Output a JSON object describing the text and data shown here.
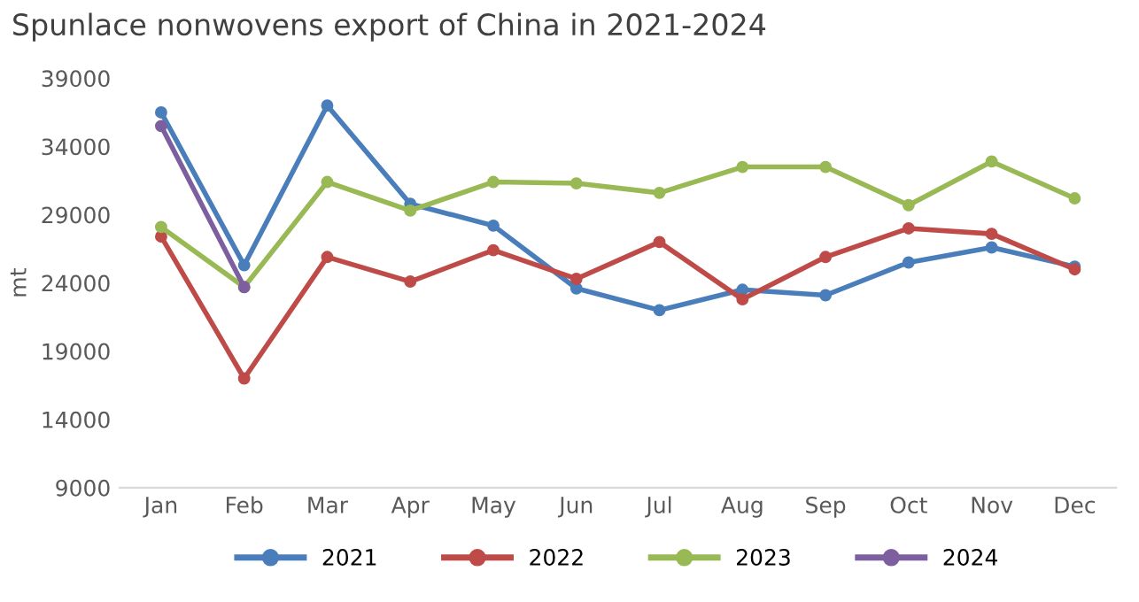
{
  "chart_data": {
    "type": "line",
    "title": "Spunlace nonwovens export of China in 2021-2024",
    "ylabel": "mt",
    "categories": [
      "Jan",
      "Feb",
      "Mar",
      "Apr",
      "May",
      "Jun",
      "Jul",
      "Aug",
      "Sep",
      "Oct",
      "Nov",
      "Dec"
    ],
    "ylim": [
      9000,
      39000
    ],
    "yticks": [
      9000,
      14000,
      19000,
      24000,
      29000,
      34000,
      39000
    ],
    "grid": false,
    "legend": "bottom",
    "marker": "circle",
    "line_style": "solid",
    "series": [
      {
        "name": "2021",
        "color": "#4a7ebb",
        "values": [
          36500,
          25300,
          37000,
          29800,
          28200,
          23600,
          22000,
          23500,
          23100,
          25500,
          26600,
          25200
        ]
      },
      {
        "name": "2022",
        "color": "#be4b48",
        "values": [
          27400,
          17000,
          25900,
          24100,
          26400,
          24300,
          27000,
          22800,
          25900,
          28000,
          27600,
          25000
        ]
      },
      {
        "name": "2023",
        "color": "#98b954",
        "values": [
          28100,
          23700,
          31400,
          29300,
          31400,
          31300,
          30600,
          32500,
          32500,
          29700,
          32900,
          30200
        ]
      },
      {
        "name": "2024",
        "color": "#7d5fa0",
        "values": [
          35500,
          23700,
          null,
          null,
          null,
          null,
          null,
          null,
          null,
          null,
          null,
          null
        ]
      }
    ]
  }
}
